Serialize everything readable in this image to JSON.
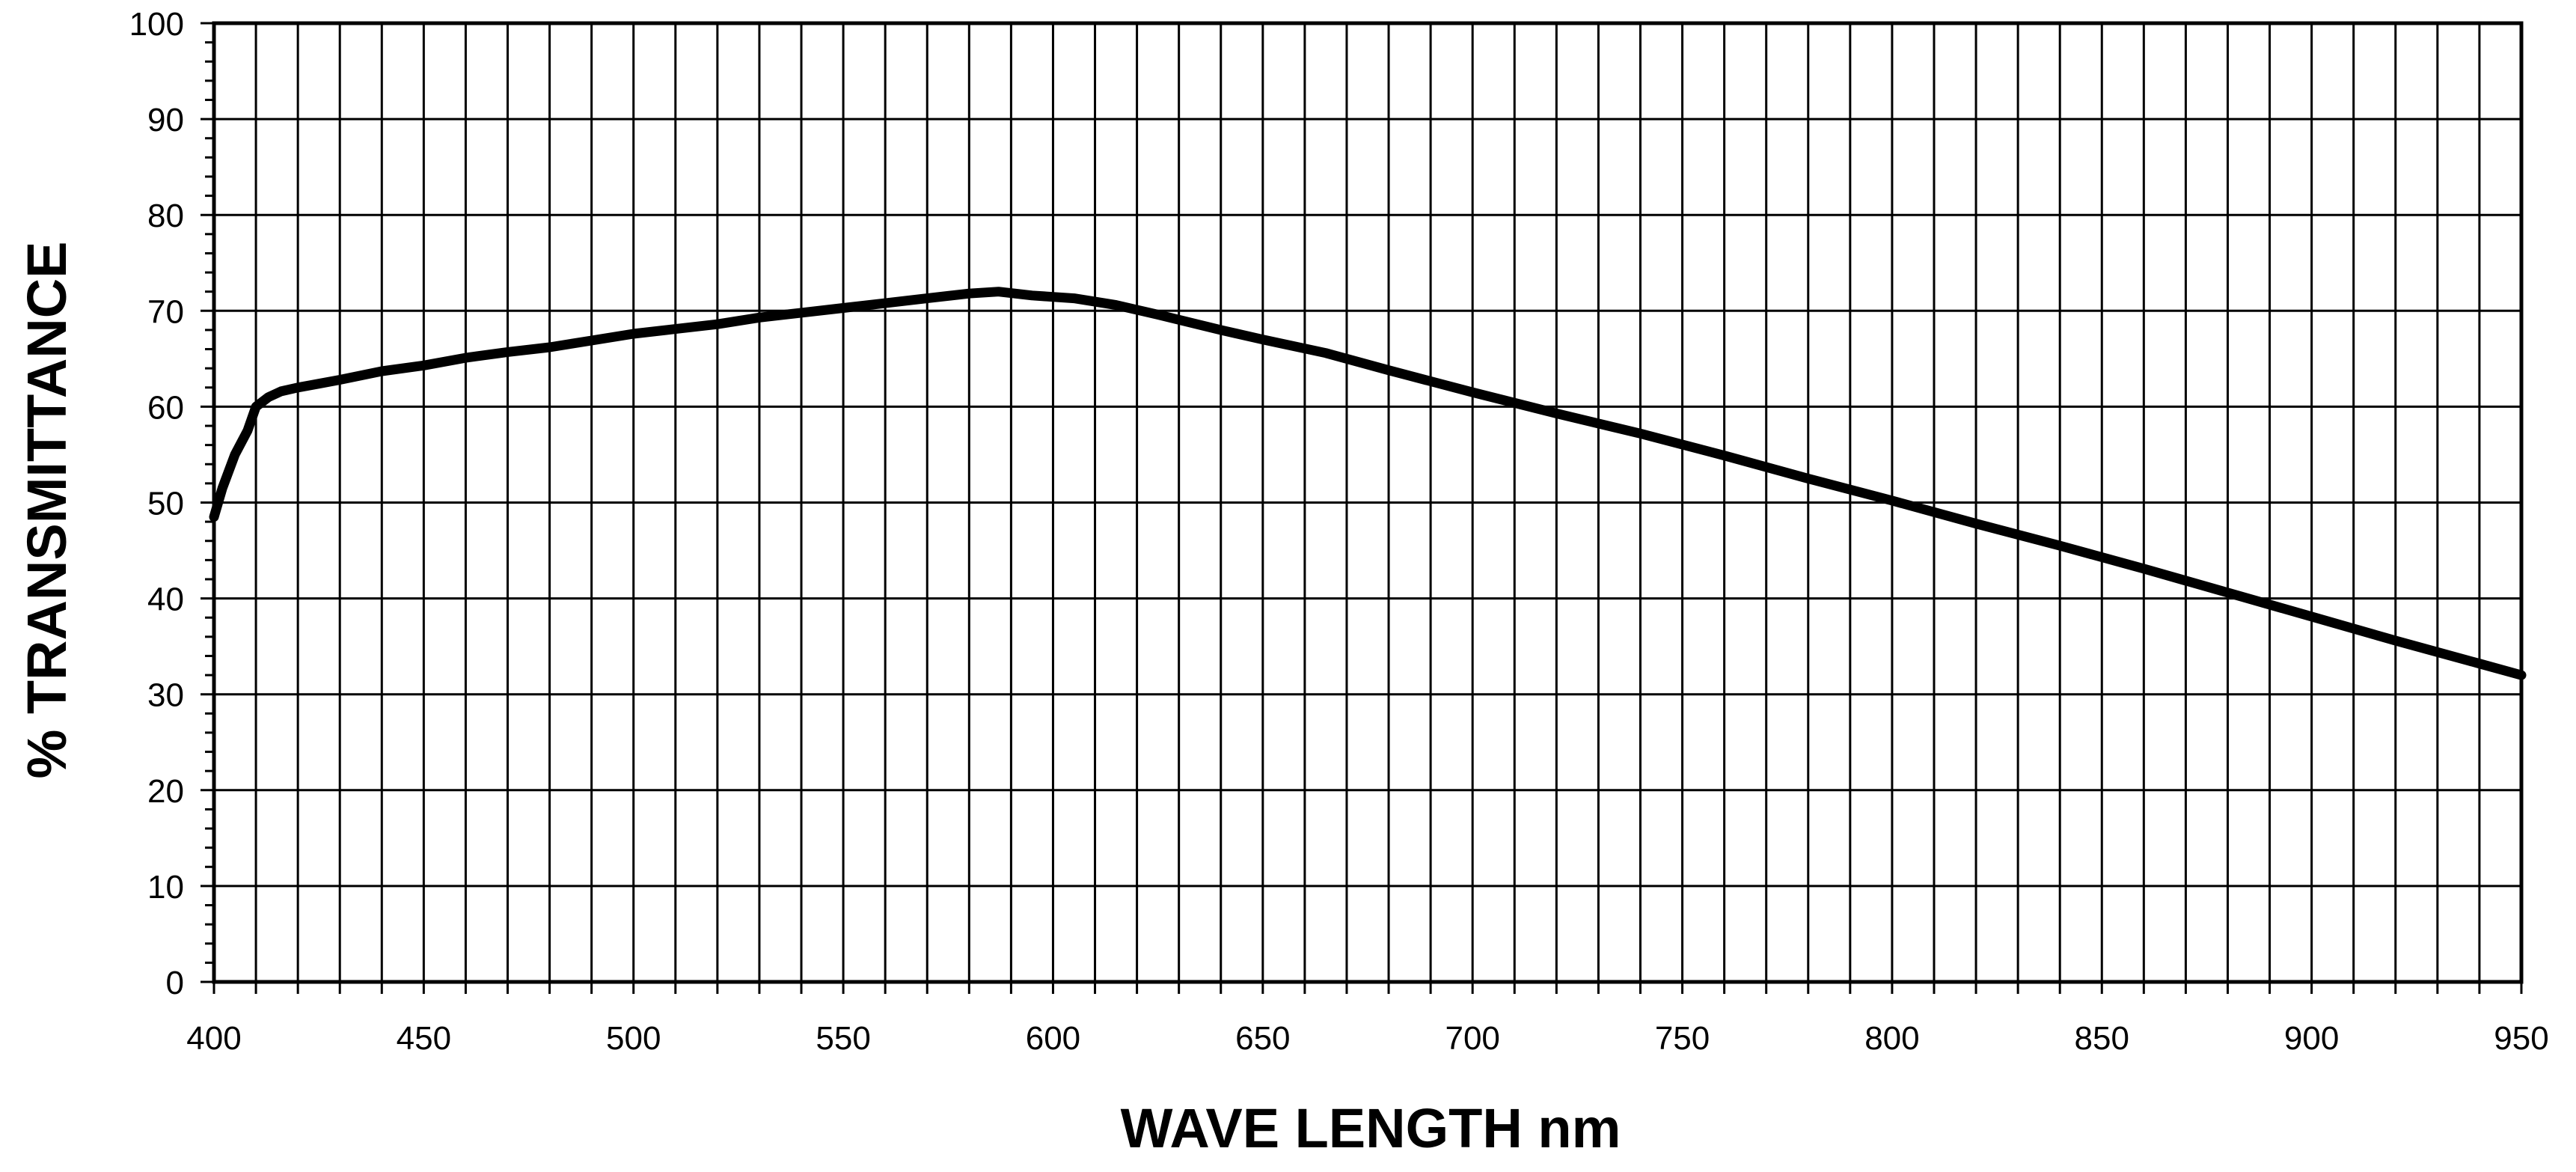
{
  "chart_data": {
    "type": "line",
    "title": "",
    "xlabel": "WAVE LENGTH nm",
    "ylabel": "% TRANSMITTANCE",
    "xlim": [
      400,
      950
    ],
    "ylim": [
      0,
      100
    ],
    "x_ticks": [
      400,
      450,
      500,
      550,
      600,
      650,
      700,
      750,
      800,
      850,
      900,
      950
    ],
    "y_ticks": [
      0,
      10,
      20,
      30,
      40,
      50,
      60,
      70,
      80,
      90,
      100
    ],
    "x_tick_labels": [
      "400",
      "450",
      "500",
      "550",
      "600",
      "650",
      "700",
      "750",
      "800",
      "850",
      "900",
      "950"
    ],
    "y_tick_labels": [
      "0",
      "10",
      "20",
      "30",
      "40",
      "50",
      "60",
      "70",
      "80",
      "90",
      "100"
    ],
    "grid": true,
    "legend": "none",
    "line_color": "#000000",
    "grid_color": "#000000",
    "series": [
      {
        "x": [
          400,
          402,
          405,
          408,
          410,
          413,
          416,
          420,
          425,
          430,
          440,
          450,
          460,
          470,
          480,
          490,
          500,
          510,
          520,
          530,
          540,
          550,
          560,
          570,
          580,
          587,
          595,
          605,
          615,
          625,
          640,
          650,
          665,
          680,
          700,
          720,
          740,
          760,
          780,
          800,
          820,
          840,
          860,
          880,
          900,
          920,
          940,
          950
        ],
        "y": [
          48.5,
          51.5,
          55,
          57.5,
          60,
          61,
          61.6,
          62,
          62.4,
          62.8,
          63.7,
          64.3,
          65.1,
          65.7,
          66.2,
          66.9,
          67.6,
          68.1,
          68.6,
          69.3,
          69.8,
          70.3,
          70.8,
          71.3,
          71.8,
          72,
          71.6,
          71.3,
          70.6,
          69.6,
          68,
          67,
          65.6,
          63.8,
          61.5,
          59.3,
          57.2,
          54.9,
          52.5,
          50.2,
          47.8,
          45.5,
          43.1,
          40.6,
          38.1,
          35.6,
          33.2,
          32
        ]
      }
    ]
  }
}
